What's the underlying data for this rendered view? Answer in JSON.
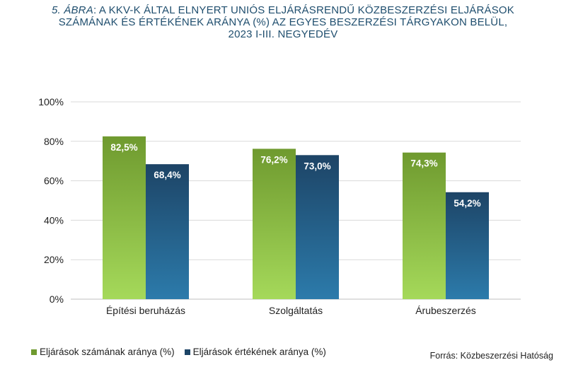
{
  "title": {
    "prefix": "5. ÁBRA",
    "line1": ": A KKV-K ÁLTAL ELNYERT UNIÓS ELJÁRÁSRENDŰ KÖZBESZERZÉSI ELJÁRÁSOK",
    "line2": "SZÁMÁNAK ÉS ÉRTÉKÉNEK ARÁNYA (%) AZ EGYES BESZERZÉSI TÁRGYAKON BELÜL,",
    "line3": "2023 I-III. NEGYEDÉV"
  },
  "colors": {
    "green_top": "#6f9a2f",
    "green_bottom": "#a5d95a",
    "blue_top": "#1d4466",
    "blue_bottom": "#2c7bab",
    "grid": "#d9d9d9",
    "axis": "#bfbfbf"
  },
  "chart_data": {
    "type": "bar",
    "categories": [
      "Építési beruházás",
      "Szolgáltatás",
      "Árubeszerzés"
    ],
    "series": [
      {
        "name": "Eljárások számának aránya (%)",
        "values": [
          82.5,
          76.2,
          74.3
        ],
        "labels": [
          "82,5%",
          "76,2%",
          "74,3%"
        ]
      },
      {
        "name": "Eljárások értékének aránya (%)",
        "values": [
          68.4,
          73.0,
          54.2
        ],
        "labels": [
          "68,4%",
          "73,0%",
          "54,2%"
        ]
      }
    ],
    "ylim": [
      0,
      100
    ],
    "yticks": [
      0,
      20,
      40,
      60,
      80,
      100
    ],
    "ytick_labels": [
      "0%",
      "20%",
      "40%",
      "60%",
      "80%",
      "100%"
    ],
    "grid": true,
    "legend_position": "bottom-left"
  },
  "source": "Forrás: Közbeszerzési Hatóság"
}
